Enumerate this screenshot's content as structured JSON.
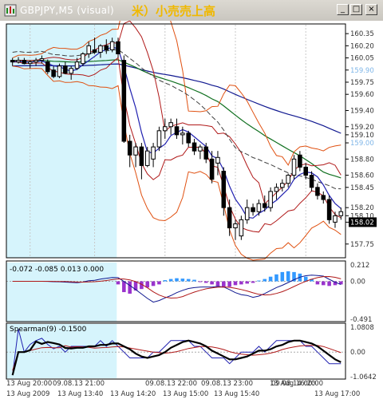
{
  "window": {
    "title": "GBPJPY,M5 (visual)",
    "note": "米）小売売上高",
    "minimize_glyph": "_",
    "restore_glyph": "□",
    "close_glyph": "×"
  },
  "colors": {
    "chart_bg": "#ffffff",
    "session_highlight": "#d6f4fc",
    "grid": "#c8c8c8",
    "axis_text": "#333333",
    "up_candle": "#ffffff",
    "down_candle": "#000000",
    "bb_outer": "#e05010",
    "bb_inner": "#b01818",
    "ma_fast": "#2020b0",
    "ma_green": "#107020",
    "ma_blue": "#101890",
    "ma_dash": "#404040",
    "macd_pos": "#3399ff",
    "macd_neg": "#9933cc",
    "spearman": "#000000",
    "price_label_bg": "#000000"
  },
  "chart_data": [
    {
      "type": "candlestick",
      "panel": "main",
      "symbol": "GBPJPY",
      "timeframe": "M5",
      "ylim": [
        157.6,
        160.45
      ],
      "price_ticks": [
        160.35,
        160.2,
        160.05,
        159.9,
        159.75,
        159.6,
        159.4,
        159.2,
        159.1,
        159.0,
        158.8,
        158.6,
        158.45,
        158.2,
        158.1,
        158.02,
        157.75
      ],
      "highlighted_ticks": [
        159.9,
        159.0
      ],
      "current_price": 158.02,
      "highlight_bars_until": 18,
      "candles": [
        [
          160.02,
          160.05,
          159.95,
          160.0
        ],
        [
          160.0,
          160.06,
          159.98,
          160.02
        ],
        [
          160.02,
          160.05,
          159.97,
          159.98
        ],
        [
          159.98,
          160.02,
          159.92,
          160.0
        ],
        [
          160.0,
          160.05,
          159.95,
          160.02
        ],
        [
          160.02,
          160.08,
          159.98,
          160.04
        ],
        [
          160.0,
          160.03,
          159.85,
          159.88
        ],
        [
          159.9,
          159.95,
          159.8,
          159.82
        ],
        [
          159.82,
          159.98,
          159.8,
          159.95
        ],
        [
          159.95,
          160.0,
          159.85,
          159.86
        ],
        [
          159.86,
          159.95,
          159.78,
          159.92
        ],
        [
          159.92,
          160.05,
          159.9,
          160.0
        ],
        [
          159.98,
          160.12,
          159.95,
          160.1
        ],
        [
          160.1,
          160.25,
          160.05,
          160.2
        ],
        [
          160.15,
          160.3,
          160.1,
          160.12
        ],
        [
          160.12,
          160.22,
          160.05,
          160.2
        ],
        [
          160.2,
          160.28,
          160.1,
          160.15
        ],
        [
          160.15,
          160.3,
          160.12,
          160.25
        ],
        [
          160.25,
          160.3,
          160.05,
          160.1
        ],
        [
          160.02,
          160.08,
          159.0,
          159.02
        ],
        [
          159.02,
          159.1,
          158.7,
          158.85
        ],
        [
          158.85,
          159.0,
          158.7,
          158.95
        ],
        [
          158.95,
          159.0,
          158.55,
          158.72
        ],
        [
          158.72,
          158.95,
          158.7,
          158.9
        ],
        [
          158.8,
          159.0,
          158.7,
          158.95
        ],
        [
          158.95,
          159.2,
          158.9,
          159.15
        ],
        [
          159.15,
          159.3,
          159.05,
          159.2
        ],
        [
          159.2,
          159.3,
          159.1,
          159.25
        ],
        [
          159.2,
          159.3,
          159.05,
          159.1
        ],
        [
          159.1,
          159.2,
          158.98,
          159.12
        ],
        [
          159.12,
          159.15,
          158.95,
          159.0
        ],
        [
          159.0,
          159.05,
          158.85,
          158.9
        ],
        [
          158.9,
          158.98,
          158.8,
          158.95
        ],
        [
          158.95,
          159.0,
          158.75,
          158.8
        ],
        [
          158.8,
          158.9,
          158.5,
          158.55
        ],
        [
          158.75,
          158.9,
          158.6,
          158.82
        ],
        [
          158.65,
          158.7,
          158.1,
          158.2
        ],
        [
          158.2,
          158.3,
          157.85,
          157.95
        ],
        [
          157.95,
          158.05,
          157.8,
          158.0
        ],
        [
          157.85,
          158.1,
          157.8,
          158.05
        ],
        [
          158.05,
          158.3,
          158.0,
          158.2
        ],
        [
          158.2,
          158.25,
          158.1,
          158.15
        ],
        [
          158.15,
          158.3,
          158.1,
          158.25
        ],
        [
          158.25,
          158.35,
          158.15,
          158.2
        ],
        [
          158.2,
          158.45,
          158.15,
          158.4
        ],
        [
          158.4,
          158.5,
          158.3,
          158.45
        ],
        [
          158.45,
          158.55,
          158.4,
          158.5
        ],
        [
          158.5,
          158.62,
          158.45,
          158.6
        ],
        [
          158.6,
          158.85,
          158.55,
          158.8
        ],
        [
          158.85,
          158.9,
          158.65,
          158.7
        ],
        [
          158.7,
          158.75,
          158.55,
          158.6
        ],
        [
          158.6,
          158.65,
          158.4,
          158.45
        ],
        [
          158.45,
          158.5,
          158.3,
          158.35
        ],
        [
          158.35,
          158.4,
          158.25,
          158.3
        ],
        [
          158.3,
          158.35,
          158.0,
          158.05
        ],
        [
          158.02,
          158.15,
          157.95,
          158.1
        ],
        [
          158.1,
          158.2,
          158.05,
          158.15
        ]
      ],
      "time_labels": [
        "13 Aug 20:00",
        "13 Aug 2009",
        "09.08.13 21:00",
        "13 Aug 13:40",
        "09.08.13 22:00",
        "13 Aug 14:20",
        "09.08.13 23:00",
        "13 Aug 15:00",
        "09.08.14 00:00",
        "13 Aug 15:40",
        "13 Aug 16:20",
        "13 Aug 17:00"
      ]
    },
    {
      "type": "bar",
      "panel": "macd",
      "name": "",
      "header_values": "-0.072 -0.085 0.013 0.000",
      "ylim": [
        -0.491,
        0.212
      ],
      "ticks": [
        0.212,
        0.0,
        -0.491
      ],
      "values": [
        0.0,
        0.0,
        0.0,
        0.0,
        0.0,
        0.0,
        0.0,
        0.0,
        0.0,
        0.0,
        0.0,
        0.0,
        0.0,
        0.0,
        0.0,
        0.0,
        0.0,
        0.0,
        -0.04,
        -0.14,
        -0.16,
        -0.12,
        -0.1,
        -0.08,
        -0.06,
        -0.04,
        0.015,
        0.03,
        0.04,
        0.035,
        0.03,
        0.02,
        -0.01,
        -0.02,
        -0.04,
        -0.06,
        -0.08,
        -0.07,
        -0.05,
        -0.04,
        -0.03,
        -0.02,
        0.01,
        0.03,
        0.06,
        0.09,
        0.12,
        0.13,
        0.12,
        0.1,
        0.06,
        0.03,
        -0.04,
        -0.05,
        -0.06,
        -0.05,
        -0.04
      ]
    },
    {
      "type": "line",
      "panel": "spearman",
      "name": "Spearman(9) -0.1500",
      "ylim": [
        -1.0642,
        1.0808
      ],
      "ticks": [
        1.0808,
        0.0,
        -1.0642
      ]
    }
  ]
}
